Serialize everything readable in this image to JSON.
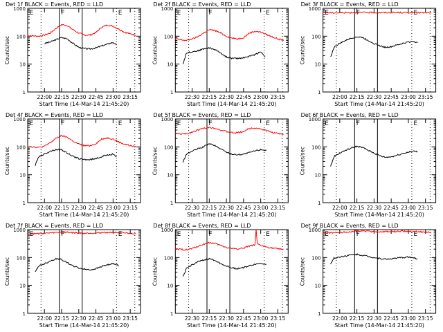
{
  "chart_data": [
    {
      "type": "line",
      "title": "Det 1f BLACK = Events, RED = LLD",
      "xlabel": "Start Time (14-Mar-14 21:45:20)",
      "ylabel": "Counts/sec",
      "xticks": [
        "22:00",
        "22:15",
        "22:30",
        "22:45",
        "23:00",
        "23:15"
      ],
      "yticks": [
        "1",
        "10",
        "100",
        "1000"
      ],
      "ylim": [
        1,
        1000
      ],
      "xlim": [
        "21:45:20",
        "23:24"
      ],
      "yscale": "log",
      "markers": [
        "E",
        "F",
        "E"
      ],
      "series": [
        {
          "name": "Events",
          "color": "#000000",
          "x": [
            "22:00",
            "22:05",
            "22:10",
            "22:15",
            "22:20",
            "22:25",
            "22:30",
            "22:35",
            "22:40",
            "22:45",
            "22:50",
            "22:55",
            "23:00",
            "23:03"
          ],
          "y": [
            55,
            62,
            75,
            90,
            80,
            55,
            40,
            36,
            35,
            38,
            45,
            52,
            60,
            48
          ]
        },
        {
          "name": "LLD",
          "color": "#ff0000",
          "x": [
            "21:45",
            "21:50",
            "21:55",
            "22:00",
            "22:05",
            "22:10",
            "22:15",
            "22:20",
            "22:25",
            "22:30",
            "22:35",
            "22:40",
            "22:45",
            "22:50",
            "22:55",
            "23:00",
            "23:05",
            "23:10",
            "23:15",
            "23:20"
          ],
          "y": [
            105,
            103,
            100,
            110,
            130,
            190,
            260,
            240,
            170,
            130,
            110,
            110,
            135,
            210,
            250,
            230,
            180,
            140,
            120,
            110
          ]
        }
      ]
    },
    {
      "type": "line",
      "title": "Det 2f BLACK = Events, RED = LLD",
      "xlabel": "Start Time (14-Mar-14 21:45:20)",
      "ylabel": "Counts/sec",
      "xticks": [
        "22:30",
        "22:15",
        "22:30",
        "22:45",
        "23:00",
        "23:15"
      ],
      "yticks": [
        "1",
        "10",
        "100",
        "1000"
      ],
      "ylim": [
        1,
        1000
      ],
      "xlim": [
        "21:45:20",
        "23:24"
      ],
      "yscale": "log",
      "markers": [
        "E",
        "F",
        "E"
      ],
      "series": [
        {
          "name": "Events",
          "color": "#000000",
          "x": [
            "21:52",
            "21:55",
            "22:00",
            "22:05",
            "22:10",
            "22:15",
            "22:20",
            "22:25",
            "22:30",
            "22:35",
            "22:40",
            "22:45",
            "22:50",
            "22:55",
            "23:00",
            "23:04"
          ],
          "y": [
            10,
            25,
            28,
            30,
            35,
            38,
            33,
            25,
            18,
            16,
            16,
            17,
            19,
            22,
            28,
            18
          ]
        },
        {
          "name": "LLD",
          "color": "#ff0000",
          "x": [
            "21:45",
            "21:50",
            "21:55",
            "22:00",
            "22:05",
            "22:10",
            "22:15",
            "22:20",
            "22:25",
            "22:30",
            "22:35",
            "22:40",
            "22:45",
            "22:50",
            "22:55",
            "23:00",
            "23:05",
            "23:10",
            "23:15",
            "23:20"
          ],
          "y": [
            80,
            75,
            70,
            80,
            95,
            130,
            170,
            160,
            130,
            100,
            85,
            80,
            90,
            130,
            150,
            140,
            115,
            95,
            80,
            70
          ]
        }
      ]
    },
    {
      "type": "line",
      "title": "Det 3f BLACK = Events, RED = LLD",
      "xlabel": "Start Time (14-Mar-14 21:45:20)",
      "ylabel": "Counts/sec",
      "xticks": [
        "22:00",
        "22:15",
        "22:30",
        "22:45",
        "23:00",
        "23:15"
      ],
      "yticks": [
        "1",
        "10",
        "100",
        "1000"
      ],
      "ylim": [
        1,
        1000
      ],
      "xlim": [
        "21:45:20",
        "23:24"
      ],
      "yscale": "log",
      "markers": [
        "E",
        "F",
        "E"
      ],
      "series": [
        {
          "name": "Events",
          "color": "#000000",
          "x": [
            "21:52",
            "21:55",
            "22:00",
            "22:05",
            "22:10",
            "22:15",
            "22:20",
            "22:25",
            "22:30",
            "22:35",
            "22:40",
            "22:45",
            "22:50",
            "22:55",
            "23:00",
            "23:05",
            "23:08"
          ],
          "y": [
            18,
            40,
            55,
            70,
            85,
            95,
            90,
            70,
            55,
            45,
            40,
            42,
            48,
            55,
            62,
            65,
            58
          ]
        },
        {
          "name": "LLD",
          "color": "#ff0000",
          "x": [
            "21:45",
            "22:00",
            "22:15",
            "22:30",
            "22:45",
            "23:00",
            "23:15",
            "23:20"
          ],
          "y": [
            700,
            690,
            710,
            700,
            705,
            700,
            695,
            700
          ]
        }
      ]
    },
    {
      "type": "line",
      "title": "Det 4f BLACK = Events, RED = LLD",
      "xlabel": "Start Time (14-Mar-14 21:45:20)",
      "ylabel": "Counts/sec",
      "xticks": [
        "22:00",
        "22:15",
        "22:30",
        "22:45",
        "23:00",
        "23:15"
      ],
      "yticks": [
        "1",
        "10",
        "100",
        "1000"
      ],
      "ylim": [
        1,
        1000
      ],
      "xlim": [
        "21:45:20",
        "23:24"
      ],
      "yscale": "log",
      "markers": [
        "E",
        "F",
        "E"
      ],
      "series": [
        {
          "name": "Events",
          "color": "#000000",
          "x": [
            "21:52",
            "21:55",
            "22:00",
            "22:05",
            "22:10",
            "22:15",
            "22:20",
            "22:25",
            "22:30",
            "22:35",
            "22:40",
            "22:45",
            "22:50",
            "22:55",
            "23:00",
            "23:03"
          ],
          "y": [
            22,
            45,
            55,
            70,
            80,
            78,
            60,
            45,
            38,
            35,
            35,
            38,
            44,
            52,
            55,
            45
          ]
        },
        {
          "name": "LLD",
          "color": "#ff0000",
          "x": [
            "21:45",
            "21:50",
            "21:55",
            "22:00",
            "22:05",
            "22:10",
            "22:15",
            "22:20",
            "22:25",
            "22:30",
            "22:35",
            "22:40",
            "22:45",
            "22:50",
            "22:55",
            "23:00",
            "23:05",
            "23:10",
            "23:15",
            "23:20"
          ],
          "y": [
            105,
            100,
            95,
            105,
            140,
            200,
            250,
            220,
            160,
            125,
            110,
            110,
            130,
            190,
            210,
            190,
            150,
            125,
            110,
            100
          ]
        }
      ]
    },
    {
      "type": "line",
      "title": "Det 5f BLACK = Events, RED = LLD",
      "xlabel": "Start Time (14-Mar-14 21:45:20)",
      "ylabel": "Counts/sec",
      "xticks": [
        "22:30",
        "22:15",
        "22:30",
        "22:45",
        "23:00",
        "23:15"
      ],
      "yticks": [
        "1",
        "10",
        "100",
        "1000"
      ],
      "ylim": [
        1,
        1000
      ],
      "xlim": [
        "21:45:20",
        "23:24"
      ],
      "yscale": "log",
      "markers": [
        "E",
        "F",
        "E"
      ],
      "series": [
        {
          "name": "Events",
          "color": "#000000",
          "x": [
            "21:52",
            "21:55",
            "22:00",
            "22:05",
            "22:10",
            "22:15",
            "22:20",
            "22:25",
            "22:30",
            "22:35",
            "22:40",
            "22:45",
            "22:50",
            "22:55",
            "23:00",
            "23:05"
          ],
          "y": [
            28,
            55,
            70,
            85,
            100,
            130,
            110,
            85,
            65,
            55,
            52,
            55,
            62,
            72,
            80,
            75
          ]
        },
        {
          "name": "LLD",
          "color": "#ff0000",
          "x": [
            "21:45",
            "21:50",
            "21:55",
            "22:00",
            "22:05",
            "22:10",
            "22:15",
            "22:20",
            "22:25",
            "22:30",
            "22:35",
            "22:40",
            "22:45",
            "22:50",
            "22:55",
            "23:00",
            "23:05",
            "23:10",
            "23:15",
            "23:20"
          ],
          "y": [
            300,
            290,
            290,
            340,
            400,
            460,
            500,
            470,
            400,
            350,
            320,
            320,
            360,
            450,
            480,
            440,
            380,
            330,
            300,
            280
          ]
        }
      ]
    },
    {
      "type": "line",
      "title": "Det 6f BLACK = Events, RED = LLD",
      "xlabel": "Start Time (14-Mar-14 21:45:20)",
      "ylabel": "Counts/sec",
      "xticks": [
        "22:00",
        "22:15",
        "22:30",
        "22:45",
        "23:00",
        "23:15"
      ],
      "yticks": [
        "1",
        "10",
        "100",
        "1000"
      ],
      "ylim": [
        1,
        1000
      ],
      "xlim": [
        "21:45:20",
        "23:24"
      ],
      "yscale": "log",
      "markers": [
        "E",
        "F",
        "E"
      ],
      "series": [
        {
          "name": "Events",
          "color": "#000000",
          "x": [
            "21:52",
            "21:55",
            "22:00",
            "22:05",
            "22:10",
            "22:15",
            "22:20",
            "22:25",
            "22:30",
            "22:35",
            "22:40",
            "22:45",
            "22:50",
            "22:55",
            "23:00",
            "23:05",
            "23:08"
          ],
          "y": [
            20,
            45,
            60,
            75,
            90,
            105,
            95,
            75,
            60,
            48,
            42,
            44,
            50,
            58,
            65,
            70,
            68
          ]
        }
      ]
    },
    {
      "type": "line",
      "title": "Det 7f BLACK = Events, RED = LLD",
      "xlabel": "Start Time (14-Mar-14 21:45:20)",
      "ylabel": "Counts/sec",
      "xticks": [
        "22:00",
        "22:15",
        "22:30",
        "22:45",
        "23:00",
        "23:15"
      ],
      "yticks": [
        "1",
        "10",
        "100",
        "1000"
      ],
      "ylim": [
        1,
        1000
      ],
      "xlim": [
        "21:45:20",
        "23:24"
      ],
      "yscale": "log",
      "markers": [
        "E",
        "F",
        "E"
      ],
      "series": [
        {
          "name": "Events",
          "color": "#000000",
          "x": [
            "21:52",
            "21:55",
            "22:00",
            "22:05",
            "22:10",
            "22:15",
            "22:20",
            "22:25",
            "22:30",
            "22:35",
            "22:40",
            "22:45",
            "22:50",
            "22:55",
            "23:00",
            "23:05"
          ],
          "y": [
            30,
            50,
            60,
            75,
            90,
            85,
            65,
            50,
            42,
            38,
            36,
            40,
            48,
            55,
            60,
            52
          ]
        },
        {
          "name": "LLD",
          "color": "#ff0000",
          "x": [
            "21:45",
            "21:55",
            "22:05",
            "22:15",
            "22:25",
            "22:35",
            "22:45",
            "22:55",
            "23:05",
            "23:15",
            "23:20"
          ],
          "y": [
            700,
            720,
            760,
            820,
            780,
            740,
            760,
            800,
            780,
            740,
            720
          ]
        }
      ]
    },
    {
      "type": "line",
      "title": "Det 8f BLACK = Events, RED = LLD",
      "xlabel": "Start Time (14-Mar-14 21:45:20)",
      "ylabel": "Counts/sec",
      "xticks": [
        "22:30",
        "22:15",
        "22:30",
        "22:45",
        "23:00",
        "23:15"
      ],
      "yticks": [
        "1",
        "10",
        "100",
        "1000"
      ],
      "ylim": [
        1,
        1000
      ],
      "xlim": [
        "21:45:20",
        "23:24"
      ],
      "yscale": "log",
      "markers": [
        "E",
        "F",
        "E"
      ],
      "series": [
        {
          "name": "Events",
          "color": "#000000",
          "x": [
            "21:52",
            "21:55",
            "22:00",
            "22:05",
            "22:10",
            "22:15",
            "22:20",
            "22:25",
            "22:30",
            "22:35",
            "22:40",
            "22:45",
            "22:50",
            "22:55",
            "23:00",
            "23:05"
          ],
          "y": [
            20,
            40,
            55,
            70,
            80,
            90,
            80,
            60,
            50,
            42,
            40,
            44,
            50,
            58,
            62,
            58
          ]
        },
        {
          "name": "LLD",
          "color": "#ff0000",
          "x": [
            "21:45",
            "21:50",
            "21:55",
            "22:00",
            "22:05",
            "22:10",
            "22:15",
            "22:20",
            "22:25",
            "22:30",
            "22:35",
            "22:40",
            "22:45",
            "22:50",
            "22:55",
            "22:56",
            "22:57",
            "23:00",
            "23:05",
            "23:10",
            "23:15",
            "23:20"
          ],
          "y": [
            200,
            195,
            190,
            210,
            250,
            300,
            340,
            320,
            270,
            230,
            210,
            205,
            220,
            260,
            280,
            1000,
            300,
            270,
            240,
            220,
            205,
            200
          ]
        }
      ]
    },
    {
      "type": "line",
      "title": "Det 9f BLACK = Events, RED = LLD",
      "xlabel": "Start Time (14-Mar-14 21:45:20)",
      "ylabel": "Counts/sec",
      "xticks": [
        "22:00",
        "22:15",
        "22:30",
        "22:45",
        "23:00",
        "23:15"
      ],
      "yticks": [
        "1",
        "10",
        "100",
        "1000"
      ],
      "ylim": [
        1,
        1000
      ],
      "xlim": [
        "21:45:20",
        "23:24"
      ],
      "yscale": "log",
      "markers": [
        "E",
        "F",
        "E"
      ],
      "series": [
        {
          "name": "Events",
          "color": "#000000",
          "x": [
            "21:52",
            "21:55",
            "22:00",
            "22:05",
            "22:10",
            "22:15",
            "22:20",
            "22:25",
            "22:30",
            "22:35",
            "22:40",
            "22:45",
            "22:50",
            "22:55",
            "23:00",
            "23:05",
            "23:08"
          ],
          "y": [
            60,
            95,
            105,
            115,
            125,
            130,
            120,
            110,
            100,
            92,
            88,
            90,
            95,
            100,
            105,
            95,
            90
          ]
        },
        {
          "name": "LLD",
          "color": "#ff0000",
          "x": [
            "21:45",
            "21:55",
            "22:05",
            "22:15",
            "22:25",
            "22:35",
            "22:45",
            "22:55",
            "23:05",
            "23:15",
            "23:20"
          ],
          "y": [
            760,
            780,
            820,
            900,
            870,
            830,
            850,
            880,
            860,
            820,
            800
          ]
        }
      ]
    }
  ]
}
